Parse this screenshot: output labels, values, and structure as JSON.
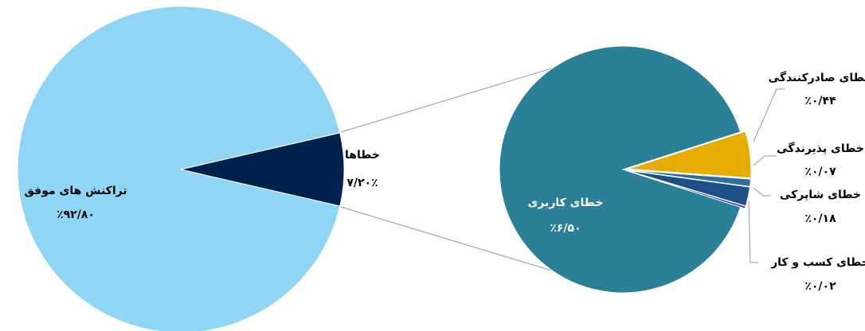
{
  "chart_data": [
    {
      "type": "pie",
      "categories": [
        "تراکنش های موفق",
        "خطاها"
      ],
      "values": [
        92.8,
        7.2
      ],
      "value_labels": [
        "٪۹۲/۸۰",
        "۷/۲۰٪"
      ],
      "colors": [
        "#8fd6f5",
        "#00204e"
      ]
    },
    {
      "type": "pie",
      "categories": [
        "خطای کاربری",
        "خطای صادرکنندگی",
        "خطای پذیرندگی",
        "خطای شاپرکی",
        "خطای کسب و کار"
      ],
      "values": [
        6.5,
        0.44,
        0.07,
        0.18,
        0.02
      ],
      "value_labels": [
        "٪۶/۵۰",
        "٪۰/۴۴",
        "٪۰/۰۷",
        "٪۰/۱۸",
        "٪۰/۰۲"
      ],
      "colors": [
        "#2a8096",
        "#e6ad00",
        "#2d6f9e",
        "#1b4f86",
        "#1a24d8"
      ]
    }
  ]
}
